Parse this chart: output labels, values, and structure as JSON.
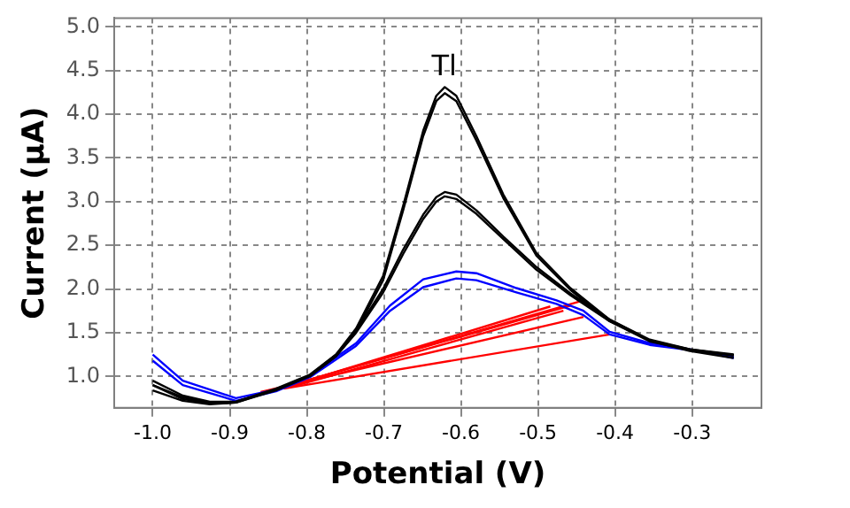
{
  "chart_data": {
    "type": "line",
    "xlabel": "Potential (V)",
    "ylabel": "Current (µA)",
    "xlim": [
      -1.05,
      -0.21
    ],
    "ylim": [
      0.64,
      5.1
    ],
    "xticks": [
      {
        "value": -1.0,
        "label": "-1.0"
      },
      {
        "value": -0.9,
        "label": "-0.9"
      },
      {
        "value": -0.8,
        "label": "-0.8"
      },
      {
        "value": -0.7,
        "label": "-0.7"
      },
      {
        "value": -0.6,
        "label": "-0.6"
      },
      {
        "value": -0.5,
        "label": "-0.5"
      },
      {
        "value": -0.4,
        "label": "-0.4"
      },
      {
        "value": -0.3,
        "label": "-0.3"
      }
    ],
    "yticks": [
      {
        "value": 1,
        "label": "1.0"
      },
      {
        "value": 1.5,
        "label": "1.5"
      },
      {
        "value": 2,
        "label": "2.0"
      },
      {
        "value": 2.5,
        "label": "2.5"
      },
      {
        "value": 3,
        "label": "3.0"
      },
      {
        "value": 3.5,
        "label": "3.5"
      },
      {
        "value": 4,
        "label": "4.0"
      },
      {
        "value": 4.5,
        "label": "4.5"
      },
      {
        "value": 5,
        "label": "5.0"
      }
    ],
    "grid": true,
    "legend": false,
    "marker": "none",
    "line_style": "solid",
    "annotations": [
      "Tl"
    ],
    "x": [
      -1.0,
      -0.961,
      -0.926,
      -0.892,
      -0.84,
      -0.796,
      -0.762,
      -0.736,
      -0.701,
      -0.675,
      -0.649,
      -0.632,
      -0.621,
      -0.606,
      -0.58,
      -0.545,
      -0.502,
      -0.458,
      -0.407,
      -0.355,
      -0.303,
      -0.246
    ],
    "series": [
      {
        "color": "#000000",
        "values": [
          0.95,
          0.78,
          0.71,
          0.71,
          0.85,
          1.01,
          1.25,
          1.55,
          2.15,
          2.95,
          3.81,
          4.21,
          4.31,
          4.21,
          3.75,
          3.08,
          2.41,
          2.01,
          1.65,
          1.41,
          1.31,
          1.25
        ]
      },
      {
        "color": "#000000",
        "values": [
          0.9,
          0.74,
          0.69,
          0.7,
          0.84,
          1.0,
          1.23,
          1.52,
          2.1,
          2.9,
          3.75,
          4.15,
          4.24,
          4.15,
          3.7,
          3.04,
          2.38,
          1.99,
          1.63,
          1.4,
          1.3,
          1.24
        ]
      },
      {
        "color": "#000000",
        "values": [
          0.9,
          0.76,
          0.7,
          0.71,
          0.86,
          1.02,
          1.25,
          1.52,
          2.0,
          2.45,
          2.85,
          3.05,
          3.11,
          3.08,
          2.9,
          2.6,
          2.25,
          1.95,
          1.65,
          1.42,
          1.31,
          1.24
        ]
      },
      {
        "color": "#000000",
        "values": [
          0.84,
          0.72,
          0.68,
          0.7,
          0.85,
          1.01,
          1.23,
          1.5,
          1.96,
          2.4,
          2.8,
          3.0,
          3.06,
          3.03,
          2.86,
          2.57,
          2.22,
          1.93,
          1.63,
          1.41,
          1.29,
          1.21
        ]
      },
      {
        "color": "#0000ff",
        "x": [
          -1.0,
          -0.961,
          -0.892,
          -0.84,
          -0.796,
          -0.736,
          -0.692,
          -0.649,
          -0.606,
          -0.58,
          -0.528,
          -0.476,
          -0.441,
          -0.407,
          -0.355,
          -0.303,
          -0.246
        ],
        "values": [
          1.25,
          0.95,
          0.75,
          0.85,
          1.01,
          1.38,
          1.81,
          2.11,
          2.2,
          2.18,
          2.01,
          1.87,
          1.75,
          1.51,
          1.38,
          1.31,
          1.21
        ]
      },
      {
        "color": "#0000ff",
        "x": [
          -1.0,
          -0.961,
          -0.892,
          -0.84,
          -0.796,
          -0.736,
          -0.692,
          -0.649,
          -0.606,
          -0.58,
          -0.528,
          -0.476,
          -0.441,
          -0.407,
          -0.355,
          -0.303,
          -0.246
        ],
        "values": [
          1.18,
          0.9,
          0.72,
          0.83,
          0.99,
          1.35,
          1.75,
          2.02,
          2.12,
          2.1,
          1.96,
          1.83,
          1.7,
          1.48,
          1.36,
          1.3,
          1.22
        ]
      },
      {
        "color": "#ff0000",
        "x": [
          -0.84,
          -0.441
        ],
        "values": [
          0.85,
          1.87
        ]
      },
      {
        "color": "#ff0000",
        "x": [
          -0.83,
          -0.484
        ],
        "values": [
          0.87,
          1.8
        ]
      },
      {
        "color": "#ff0000",
        "x": [
          -0.85,
          -0.458
        ],
        "values": [
          0.83,
          1.81
        ]
      },
      {
        "color": "#ff0000",
        "x": [
          -0.82,
          -0.467
        ],
        "values": [
          0.88,
          1.75
        ]
      },
      {
        "color": "#ff0000",
        "x": [
          -0.86,
          -0.441
        ],
        "values": [
          0.82,
          1.68
        ]
      },
      {
        "color": "#ff0000",
        "x": [
          -0.83,
          -0.407
        ],
        "values": [
          0.86,
          1.48
        ]
      }
    ]
  }
}
